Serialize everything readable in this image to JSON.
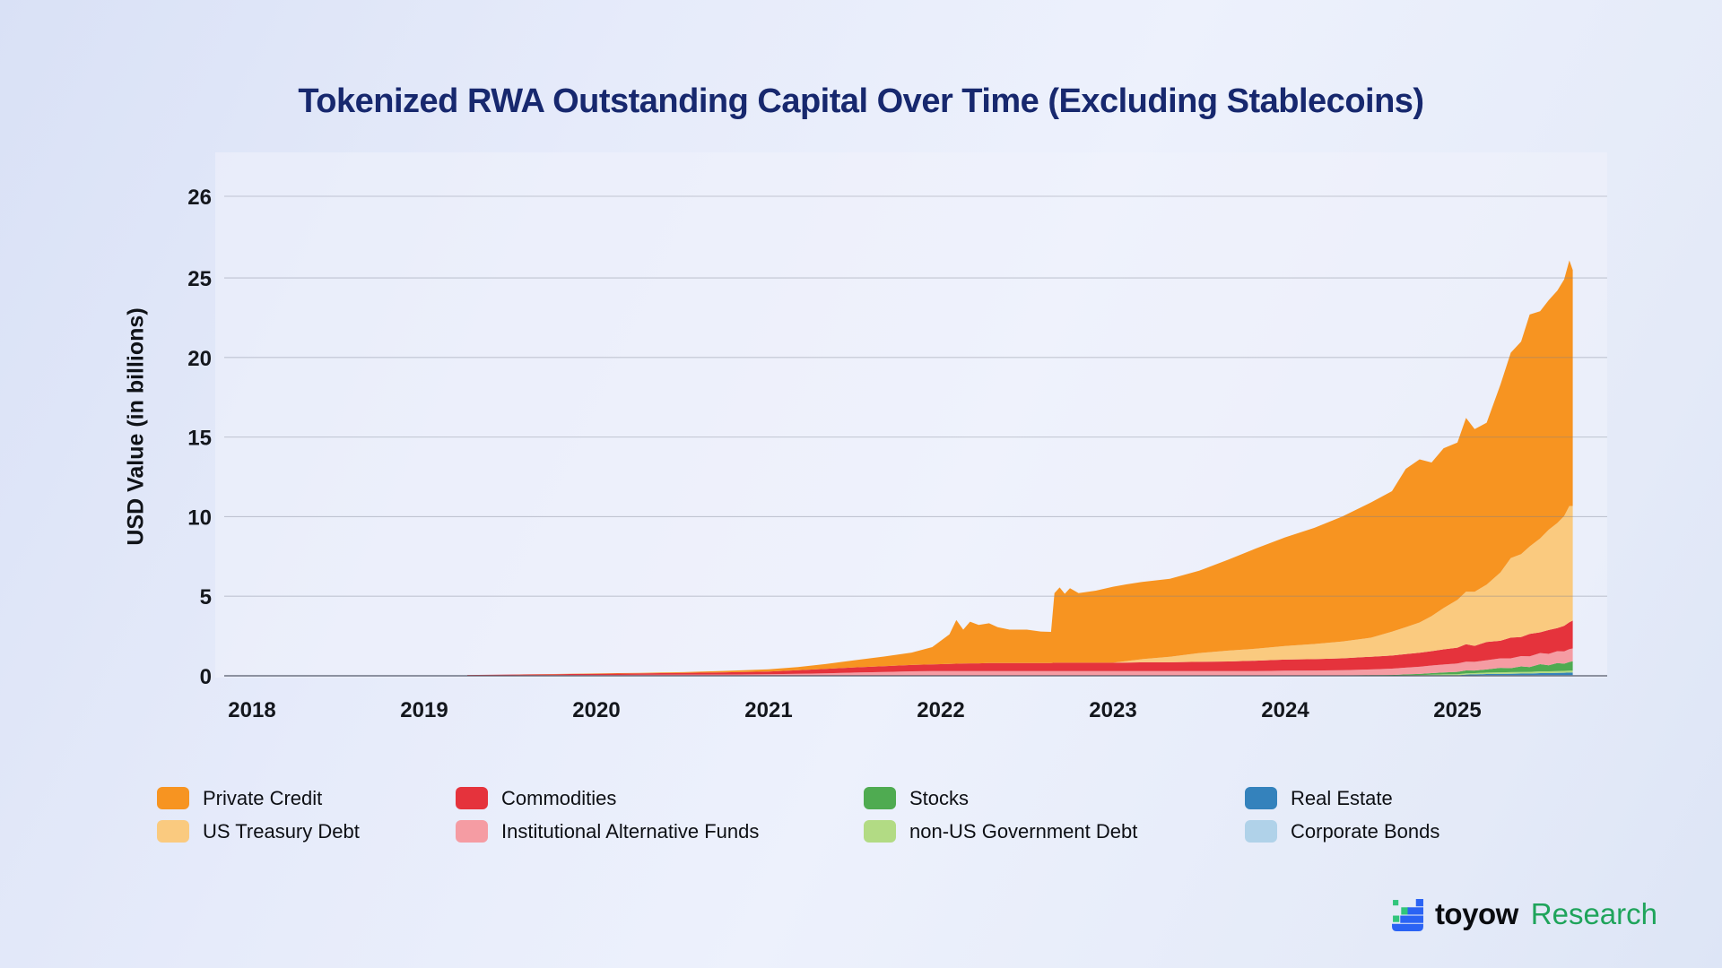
{
  "title": "Tokenized RWA Outstanding Capital Over Time (Excluding Stablecoins)",
  "y_axis_label": "USD Value (in billions)",
  "brand": {
    "name": "toyow",
    "suffix": "Research",
    "icon_blue": "#2a63f4",
    "icon_green": "#31c57c",
    "suffix_color": "#1fa45b"
  },
  "colors": {
    "title": "#17286e",
    "gridline": "rgba(120,126,142,0.38)",
    "baseline": "rgba(60,66,82,0.62)",
    "tick_text": "#14171d",
    "plot_background": "#f0f3fb"
  },
  "legend": [
    {
      "label": "Private Credit",
      "color": "#F79421"
    },
    {
      "label": "US Treasury Debt",
      "color": "#FACA7F"
    },
    {
      "label": "Commodities",
      "color": "#E5333C"
    },
    {
      "label": "Institutional Alternative Funds",
      "color": "#F59CA3"
    },
    {
      "label": "Stocks",
      "color": "#4FAB51"
    },
    {
      "label": "non-US Government Debt",
      "color": "#B2DB84"
    },
    {
      "label": "Real Estate",
      "color": "#3482BC"
    },
    {
      "label": "Corporate Bonds",
      "color": "#B0D2E9"
    }
  ],
  "chart_data": {
    "type": "area",
    "stacked": true,
    "title": "Tokenized RWA Outstanding Capital Over Time (Excluding Stablecoins)",
    "xlabel": "",
    "ylabel": "USD Value (in billions)",
    "grid": "horizontal",
    "legend_position": "bottom",
    "x_ticks": [
      2018,
      2019,
      2020,
      2021,
      2022,
      2023,
      2024,
      2025
    ],
    "y_ticks": [
      0,
      5,
      10,
      15,
      20,
      25,
      26
    ],
    "top_tick_at_plot_top": true,
    "ylim": [
      0,
      26.1
    ],
    "xlim": [
      2018,
      2025.7
    ],
    "x_unit": "decimal year",
    "value_unit": "USD billions",
    "x": [
      2019.25,
      2019.5,
      2019.75,
      2020.0,
      2020.25,
      2020.5,
      2020.75,
      2021.0,
      2021.17,
      2021.33,
      2021.5,
      2021.67,
      2021.83,
      2021.95,
      2022.05,
      2022.09,
      2022.13,
      2022.17,
      2022.22,
      2022.28,
      2022.33,
      2022.4,
      2022.5,
      2022.58,
      2022.64,
      2022.66,
      2022.69,
      2022.72,
      2022.75,
      2022.8,
      2022.9,
      2023.0,
      2023.08,
      2023.17,
      2023.33,
      2023.5,
      2023.67,
      2023.83,
      2024.0,
      2024.17,
      2024.33,
      2024.5,
      2024.62,
      2024.7,
      2024.78,
      2024.85,
      2024.92,
      2025.0,
      2025.05,
      2025.1,
      2025.17,
      2025.25,
      2025.31,
      2025.37,
      2025.42,
      2025.48,
      2025.53,
      2025.58,
      2025.62,
      2025.65,
      2025.67
    ],
    "series": [
      {
        "name": "Corporate Bonds",
        "color": "#B0D2E9",
        "values": [
          0,
          0,
          0,
          0,
          0,
          0,
          0,
          0,
          0,
          0,
          0,
          0,
          0,
          0,
          0,
          0,
          0,
          0,
          0,
          0,
          0,
          0,
          0,
          0,
          0,
          0,
          0,
          0,
          0,
          0,
          0,
          0,
          0,
          0,
          0,
          0,
          0,
          0,
          0,
          0,
          0,
          0,
          0,
          0,
          0,
          0.02,
          0.03,
          0.03,
          0.03,
          0.03,
          0.04,
          0.04,
          0.04,
          0.04,
          0.04,
          0.05,
          0.05,
          0.05,
          0.05,
          0.05,
          0.05
        ]
      },
      {
        "name": "Real Estate",
        "color": "#3482BC",
        "values": [
          0,
          0,
          0,
          0,
          0,
          0,
          0,
          0,
          0,
          0,
          0,
          0,
          0,
          0,
          0,
          0,
          0,
          0,
          0,
          0,
          0,
          0,
          0,
          0,
          0,
          0,
          0,
          0,
          0,
          0,
          0,
          0,
          0,
          0,
          0,
          0,
          0,
          0,
          0,
          0,
          0,
          0,
          0,
          0,
          0,
          0,
          0,
          0,
          0.05,
          0.06,
          0.07,
          0.08,
          0.09,
          0.1,
          0.1,
          0.12,
          0.12,
          0.13,
          0.14,
          0.15,
          0.15
        ]
      },
      {
        "name": "non-US Government Debt",
        "color": "#B2DB84",
        "values": [
          0,
          0,
          0,
          0,
          0,
          0,
          0,
          0,
          0,
          0,
          0,
          0,
          0,
          0,
          0,
          0,
          0,
          0,
          0,
          0,
          0,
          0,
          0,
          0,
          0,
          0,
          0,
          0,
          0,
          0,
          0,
          0,
          0,
          0,
          0,
          0,
          0,
          0,
          0,
          0,
          0,
          0,
          0,
          0.03,
          0.04,
          0.05,
          0.06,
          0.07,
          0.08,
          0.08,
          0.09,
          0.1,
          0.1,
          0.1,
          0.11,
          0.11,
          0.11,
          0.12,
          0.12,
          0.12,
          0.12
        ]
      },
      {
        "name": "Stocks",
        "color": "#4FAB51",
        "values": [
          0,
          0,
          0,
          0,
          0,
          0,
          0,
          0,
          0,
          0,
          0,
          0,
          0,
          0,
          0,
          0,
          0,
          0,
          0,
          0,
          0,
          0,
          0,
          0,
          0,
          0,
          0,
          0,
          0,
          0,
          0,
          0,
          0,
          0,
          0,
          0,
          0,
          0,
          0,
          0,
          0,
          0.03,
          0.05,
          0.06,
          0.08,
          0.1,
          0.12,
          0.15,
          0.18,
          0.16,
          0.2,
          0.28,
          0.25,
          0.35,
          0.3,
          0.45,
          0.38,
          0.5,
          0.45,
          0.55,
          0.6
        ]
      },
      {
        "name": "Institutional Alternative Funds",
        "color": "#F59CA3",
        "values": [
          0.02,
          0.03,
          0.04,
          0.05,
          0.06,
          0.07,
          0.08,
          0.1,
          0.13,
          0.16,
          0.2,
          0.24,
          0.28,
          0.3,
          0.3,
          0.3,
          0.3,
          0.3,
          0.3,
          0.3,
          0.3,
          0.3,
          0.3,
          0.3,
          0.3,
          0.3,
          0.3,
          0.3,
          0.3,
          0.3,
          0.3,
          0.3,
          0.3,
          0.3,
          0.3,
          0.3,
          0.3,
          0.3,
          0.32,
          0.33,
          0.35,
          0.37,
          0.4,
          0.42,
          0.45,
          0.48,
          0.5,
          0.52,
          0.55,
          0.55,
          0.58,
          0.6,
          0.62,
          0.65,
          0.68,
          0.7,
          0.72,
          0.75,
          0.78,
          0.8,
          0.8
        ]
      },
      {
        "name": "Commodities",
        "color": "#E5333C",
        "values": [
          0.03,
          0.05,
          0.06,
          0.08,
          0.09,
          0.11,
          0.14,
          0.17,
          0.22,
          0.28,
          0.33,
          0.37,
          0.4,
          0.42,
          0.45,
          0.46,
          0.47,
          0.48,
          0.48,
          0.5,
          0.5,
          0.5,
          0.5,
          0.5,
          0.5,
          0.52,
          0.52,
          0.52,
          0.52,
          0.52,
          0.52,
          0.52,
          0.53,
          0.55,
          0.55,
          0.58,
          0.6,
          0.65,
          0.7,
          0.72,
          0.75,
          0.8,
          0.82,
          0.85,
          0.88,
          0.9,
          0.95,
          1.0,
          1.1,
          1.0,
          1.15,
          1.1,
          1.3,
          1.2,
          1.4,
          1.3,
          1.5,
          1.45,
          1.6,
          1.7,
          1.75
        ]
      },
      {
        "name": "US Treasury Debt",
        "color": "#FACA7F",
        "values": [
          0,
          0,
          0,
          0,
          0,
          0,
          0,
          0,
          0,
          0,
          0,
          0,
          0,
          0,
          0,
          0,
          0,
          0,
          0,
          0,
          0,
          0,
          0,
          0,
          0,
          0,
          0,
          0,
          0,
          0,
          0,
          0,
          0.1,
          0.2,
          0.35,
          0.55,
          0.68,
          0.75,
          0.85,
          0.95,
          1.05,
          1.2,
          1.5,
          1.7,
          1.9,
          2.2,
          2.6,
          3.0,
          3.3,
          3.4,
          3.6,
          4.3,
          5.0,
          5.2,
          5.5,
          5.9,
          6.3,
          6.6,
          6.9,
          7.3,
          7.2
        ]
      },
      {
        "name": "Private Credit",
        "color": "#F79421",
        "values": [
          0,
          0,
          0.01,
          0.02,
          0.03,
          0.05,
          0.09,
          0.14,
          0.2,
          0.3,
          0.45,
          0.6,
          0.78,
          1.08,
          1.85,
          2.74,
          2.13,
          2.62,
          2.42,
          2.5,
          2.25,
          2.1,
          2.1,
          1.98,
          1.96,
          4.38,
          4.73,
          4.33,
          4.68,
          4.38,
          4.53,
          4.78,
          4.82,
          4.85,
          4.9,
          5.17,
          5.72,
          6.3,
          6.83,
          7.3,
          7.85,
          8.5,
          8.83,
          9.94,
          10.25,
          9.65,
          10.04,
          9.89,
          10.91,
          10.22,
          10.17,
          11.8,
          12.9,
          13.36,
          14.57,
          14.27,
          14.42,
          14.6,
          14.86,
          15.43,
          14.83
        ]
      }
    ]
  }
}
